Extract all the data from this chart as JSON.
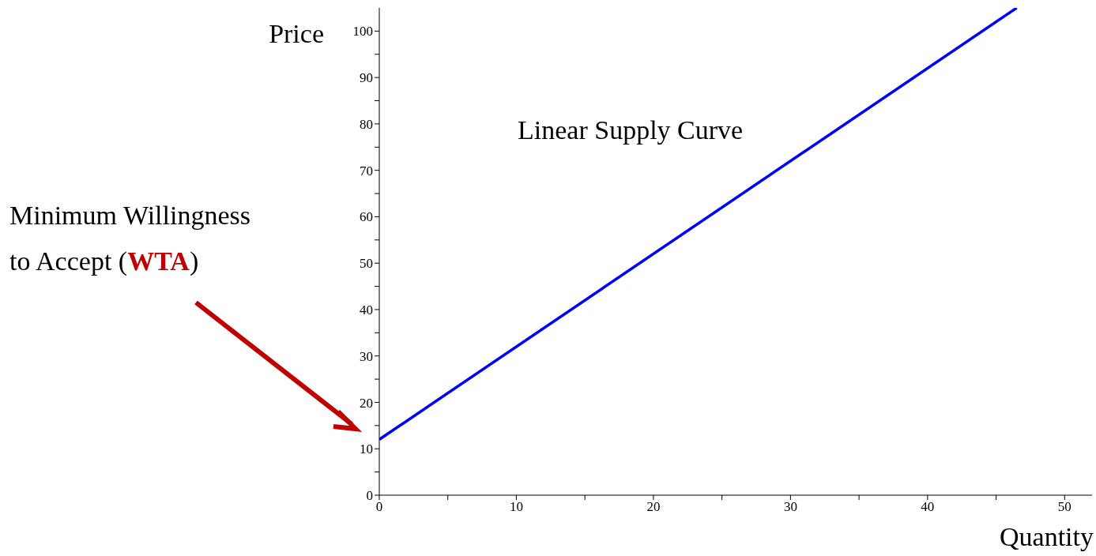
{
  "chart_data": {
    "type": "line",
    "xlabel": "Quantity",
    "ylabel": "Price",
    "series": [
      {
        "color": "#0000ff",
        "x": [
          0,
          46.5
        ],
        "values": [
          12,
          105
        ]
      }
    ],
    "xlim": [
      0,
      52
    ],
    "ylim": [
      0,
      105
    ],
    "xticks": [
      0,
      {
        "value": 5,
        "label": null
      },
      10,
      {
        "value": 15,
        "label": null
      },
      20,
      {
        "value": 25,
        "label": null
      },
      30,
      {
        "value": 35,
        "label": null
      },
      40,
      {
        "value": 45,
        "label": null
      },
      50
    ],
    "yticks": [
      0,
      {
        "value": 5,
        "label": null
      },
      10,
      {
        "value": 15,
        "label": null
      },
      20,
      {
        "value": 25,
        "label": null
      },
      30,
      {
        "value": 35,
        "label": null
      },
      40,
      {
        "value": 45,
        "label": null
      },
      50,
      {
        "value": 55,
        "label": null
      },
      60,
      {
        "value": 65,
        "label": null
      },
      70,
      {
        "value": 75,
        "label": null
      },
      80,
      {
        "value": 85,
        "label": null
      },
      90,
      {
        "value": 95,
        "label": null
      },
      100
    ],
    "grid": false,
    "legend": false,
    "marker": "none",
    "line_style": "solid",
    "annotations": [
      "Linear Supply Curve",
      "Minimum Willingness to Accept (WTA)"
    ]
  }
}
